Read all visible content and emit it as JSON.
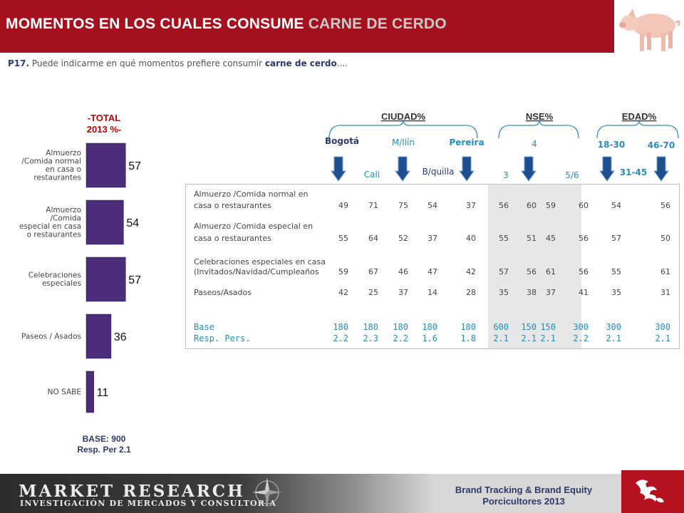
{
  "header": {
    "title_main": "MOMENTOS EN LOS CUALES CONSUME ",
    "title_highlight": "CARNE DE CERDO",
    "question_prefix": "P17.",
    "question_text": " Puede indicarme en qué momentos prefiere consumir ",
    "question_bold": "carne de cerdo",
    "question_suffix": "...."
  },
  "left_chart": {
    "total_line1": "-TOTAL",
    "total_line2": "2013 %-",
    "base_line1": "BASE:    900",
    "base_line2": "Resp. Per  2.1"
  },
  "chart_data": [
    {
      "type": "bar",
      "orientation": "horizontal",
      "title": "",
      "categories": [
        "Almuerzo /Comida normal en casa o restaurantes",
        "Almuerzo /Comida especial en casa o restaurantes",
        "Celebraciones especiales",
        "Paseos / Asados",
        "NO SABE"
      ],
      "category_lines": [
        [
          "Almuerzo",
          "/Comida normal",
          "en casa o",
          "restaurantes"
        ],
        [
          "Almuerzo",
          "/Comida",
          "especial  en casa",
          "o restaurantes"
        ],
        [
          "Celebraciones",
          "especiales"
        ],
        [
          "Paseos  / Asados"
        ],
        [
          "NO SABE"
        ]
      ],
      "values": [
        57,
        54,
        57,
        36,
        11
      ],
      "value_labels": [
        "57",
        "54",
        "57",
        "36",
        "11"
      ],
      "bar_color": "#4a2c7a",
      "xlim": [
        0,
        100
      ]
    },
    {
      "type": "table",
      "group_headers": [
        "CIUDAD%",
        "NSE%",
        "EDAD%"
      ],
      "column_labels_top": [
        "Bogotá",
        "M/llín",
        "Pereira",
        "4",
        "18-30",
        "46-70"
      ],
      "column_labels_bottom": [
        "Cali",
        "B/quilla",
        "3",
        "5/6",
        "31-45"
      ],
      "columns": [
        "Bogotá",
        "Cali",
        "M/llín",
        "B/quilla",
        "Pereira",
        "3",
        "4",
        "5/6",
        "18-30",
        "31-45",
        "46-70"
      ],
      "rows": [
        {
          "label_line1": "Almuerzo /Comida normal en",
          "label_line2": "casa o restaurantes",
          "values": [
            "49",
            "71",
            "75",
            "54",
            "37",
            "56",
            "60",
            "59",
            "60",
            "54",
            "56"
          ]
        },
        {
          "label_line1": "Almuerzo /Comida especial en",
          "label_line2": "casa o restaurantes",
          "values": [
            "55",
            "64",
            "52",
            "37",
            "40",
            "55",
            "51",
            "45",
            "56",
            "57",
            "50"
          ]
        },
        {
          "label_line1": "Celebraciones  especiales  en casa",
          "label_line2": "(Invitados/Navidad/Cumpleaños",
          "values": [
            "59",
            "67",
            "46",
            "47",
            "42",
            "57",
            "56",
            "61",
            "56",
            "55",
            "61"
          ]
        },
        {
          "label_line1": "",
          "label_line2": "Paseos/Asados",
          "values": [
            "42",
            "25",
            "37",
            "14",
            "28",
            "35",
            "38",
            "37",
            "41",
            "35",
            "31"
          ]
        }
      ],
      "base_label": "Base",
      "base_values": [
        "180",
        "180",
        "180",
        "180",
        "180",
        "600",
        "150",
        "150",
        "300",
        "300",
        "300"
      ],
      "resp_label": "Resp. Pers.",
      "resp_values": [
        "2.2",
        "2.3",
        "2.2",
        "1.6",
        "1.8",
        "2.1",
        "2.1",
        "2.1",
        "2.2",
        "2.1",
        "2.1"
      ]
    }
  ],
  "footer": {
    "logo_title": "MARKET RESEARCH",
    "logo_subtitle": "INVESTIGACIÓN DE MERCADOS Y CONSULTORÍA",
    "brand_line1": "Brand Tracking & Brand Equity",
    "brand_line2": "Porcicultores 2013"
  },
  "colors": {
    "header_red": "#a5121f",
    "bar_purple": "#4a2c7a",
    "arrow_blue": "#1f4e8c",
    "accent_teal": "#2a8cb8",
    "total_red": "#c00000"
  }
}
